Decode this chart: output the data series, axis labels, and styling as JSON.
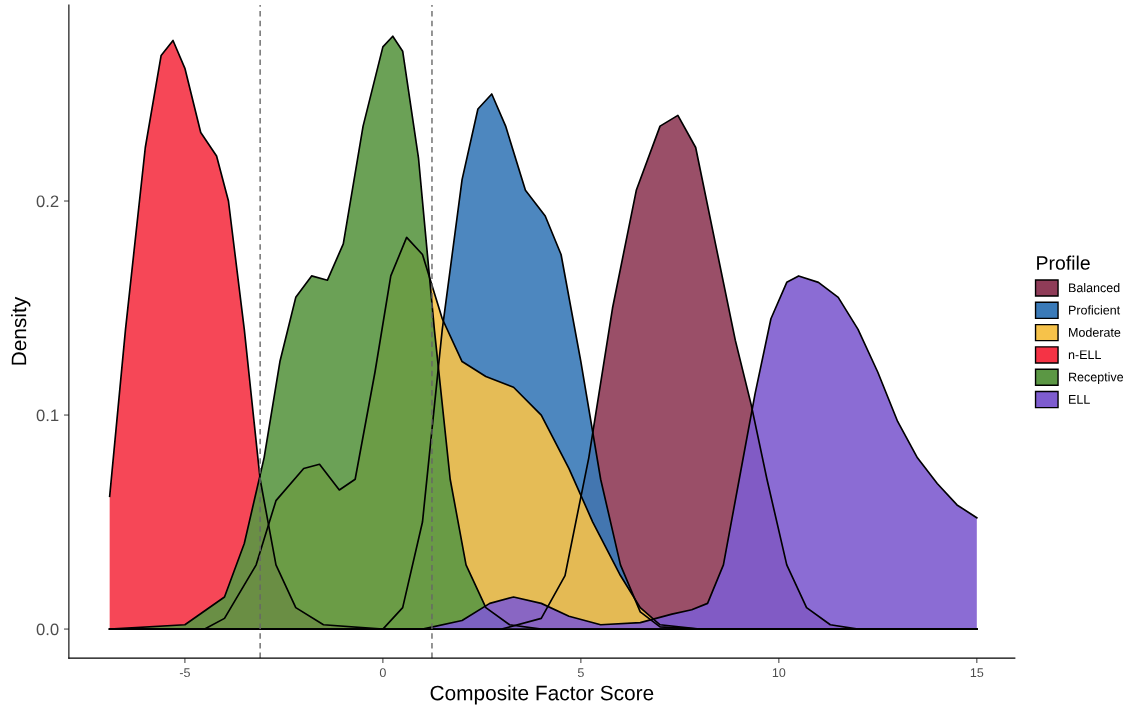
{
  "chart_data": {
    "type": "area",
    "xlabel": "Composite Factor Score",
    "ylabel": "Density",
    "legend_title": "Profile",
    "xlim": [
      -7.93,
      15.96
    ],
    "ylim": [
      -0.0136,
      0.2916
    ],
    "xticks": [
      -5,
      0,
      5,
      10,
      15
    ],
    "yticks": [
      {
        "value": 0,
        "label": "0.0"
      },
      {
        "value": 0.1,
        "label": "0.1"
      },
      {
        "value": 0.2,
        "label": "0.2"
      }
    ],
    "grid": false,
    "legend": "right",
    "ref_lines": [
      {
        "axis": "x",
        "value": -3.1,
        "color": "#666666",
        "line_style": "dashed"
      },
      {
        "axis": "x",
        "value": 1.24,
        "color": "#666666",
        "line_style": "dashed"
      }
    ],
    "series": [
      {
        "name": "Balanced",
        "color": "#8f3c58",
        "x": [
          -6.9,
          3,
          4,
          4.6,
          5.2,
          5.8,
          6.4,
          7,
          7.45,
          7.9,
          8.4,
          8.9,
          9.3,
          9.7,
          10.2,
          10.7,
          11.3,
          12,
          15
        ],
        "values": [
          0,
          0,
          0.005,
          0.025,
          0.08,
          0.15,
          0.205,
          0.235,
          0.24,
          0.225,
          0.18,
          0.135,
          0.105,
          0.07,
          0.03,
          0.01,
          0.002,
          0,
          0
        ]
      },
      {
        "name": "Proficient",
        "color": "#3a7ab8",
        "x": [
          -6.9,
          0,
          0.5,
          1,
          1.5,
          2,
          2.4,
          2.75,
          3.1,
          3.6,
          4.1,
          4.5,
          5,
          5.5,
          6,
          6.5,
          7,
          8,
          15
        ],
        "values": [
          0,
          0,
          0.01,
          0.05,
          0.14,
          0.21,
          0.243,
          0.25,
          0.235,
          0.205,
          0.193,
          0.175,
          0.125,
          0.07,
          0.03,
          0.008,
          0.001,
          0,
          0
        ]
      },
      {
        "name": "Moderate",
        "color": "#f6c24a",
        "x": [
          -6.9,
          -4.5,
          -4,
          -3.2,
          -2.7,
          -2,
          -1.6,
          -1.1,
          -0.7,
          -0.2,
          0.2,
          0.6,
          1,
          1.5,
          2,
          2.6,
          3.3,
          4,
          4.7,
          5.3,
          6,
          6.5,
          7,
          8,
          15
        ],
        "values": [
          0,
          0,
          0.005,
          0.03,
          0.06,
          0.075,
          0.077,
          0.065,
          0.07,
          0.12,
          0.165,
          0.183,
          0.175,
          0.145,
          0.125,
          0.118,
          0.113,
          0.1,
          0.075,
          0.05,
          0.025,
          0.01,
          0.002,
          0,
          0
        ]
      },
      {
        "name": "n-ELL",
        "color": "#f53345",
        "x": [
          -6.9,
          -6.5,
          -6,
          -5.6,
          -5.3,
          -5,
          -4.6,
          -4.2,
          -3.9,
          -3.5,
          -3.1,
          -2.7,
          -2.2,
          -1.5,
          0,
          15
        ],
        "values": [
          0.062,
          0.14,
          0.225,
          0.268,
          0.275,
          0.262,
          0.232,
          0.221,
          0.2,
          0.14,
          0.07,
          0.03,
          0.01,
          0.002,
          0,
          0
        ]
      },
      {
        "name": "Receptive",
        "color": "#5b9744",
        "x": [
          -6.9,
          -5,
          -4,
          -3.5,
          -3,
          -2.6,
          -2.2,
          -1.8,
          -1.4,
          -1,
          -0.5,
          0,
          0.25,
          0.5,
          0.9,
          1.3,
          1.7,
          2.1,
          2.6,
          3.2,
          4,
          15
        ],
        "values": [
          0,
          0.002,
          0.015,
          0.04,
          0.08,
          0.125,
          0.155,
          0.165,
          0.163,
          0.18,
          0.235,
          0.272,
          0.277,
          0.27,
          0.22,
          0.14,
          0.07,
          0.03,
          0.01,
          0.002,
          0,
          0
        ]
      },
      {
        "name": "ELL",
        "color": "#7e5ccf",
        "x": [
          -6.9,
          1,
          2,
          2.7,
          3.3,
          4,
          4.7,
          5.5,
          6.5,
          7.3,
          7.8,
          8.2,
          8.6,
          9,
          9.4,
          9.8,
          10.2,
          10.5,
          11,
          11.5,
          12,
          12.5,
          13,
          13.5,
          14,
          14.5,
          15
        ],
        "values": [
          0,
          0,
          0.004,
          0.012,
          0.015,
          0.012,
          0.006,
          0.002,
          0.003,
          0.007,
          0.009,
          0.012,
          0.03,
          0.07,
          0.11,
          0.145,
          0.162,
          0.165,
          0.162,
          0.155,
          0.14,
          0.12,
          0.097,
          0.08,
          0.068,
          0.058,
          0.052
        ]
      }
    ]
  }
}
